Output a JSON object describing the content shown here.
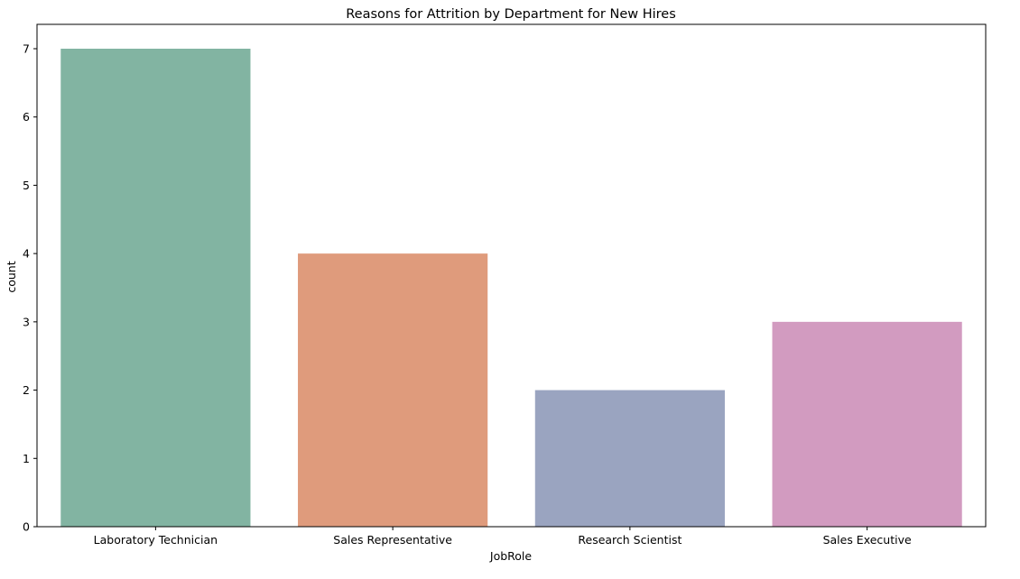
{
  "chart_data": {
    "type": "bar",
    "title": "Reasons for Attrition by Department for New Hires",
    "xlabel": "JobRole",
    "ylabel": "count",
    "categories": [
      "Laboratory Technician",
      "Sales Representative",
      "Research Scientist",
      "Sales Executive"
    ],
    "values": [
      7,
      4,
      2,
      3
    ],
    "colors": [
      "#82b4a2",
      "#df9b7c",
      "#9aa4c0",
      "#d29bc0"
    ],
    "ylim": [
      0,
      7
    ],
    "yticks": [
      0,
      1,
      2,
      3,
      4,
      5,
      6,
      7
    ],
    "grid": false,
    "legend": "none"
  }
}
